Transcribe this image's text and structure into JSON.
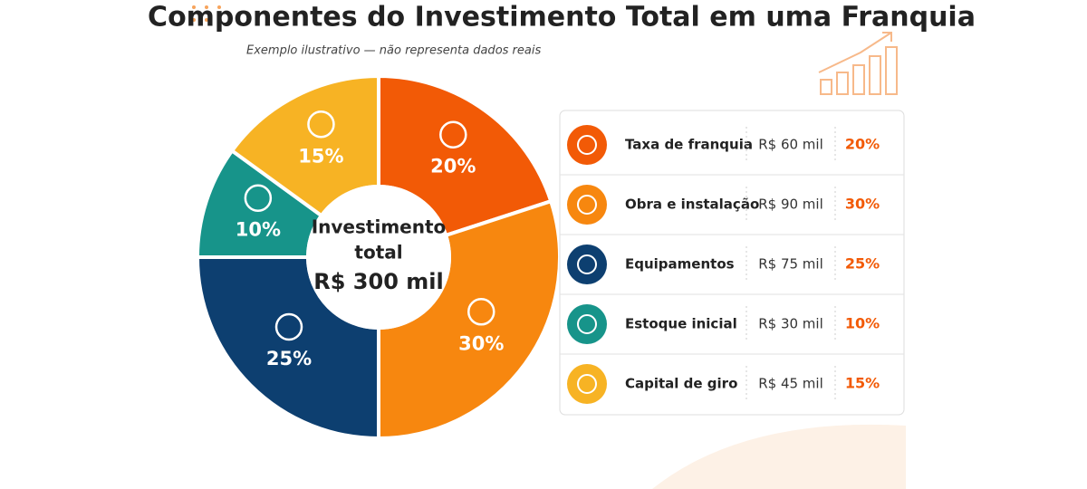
{
  "chart_data": {
    "type": "donut",
    "title": "Componentes do Investimento Total em uma Franquia",
    "subtitle": "Exemplo ilustrativo — não representa dados reais",
    "center_label": [
      "Investimento",
      "total",
      "R$ 300 mil"
    ],
    "categories": [
      "Taxa de franquia",
      "Obra e instalação",
      "Equipamentos",
      "Estoque inicial",
      "Capital de giro"
    ],
    "values": [
      20,
      30,
      25,
      10,
      15
    ],
    "value_labels": [
      "20%",
      "30%",
      "25%",
      "10%",
      "15%"
    ],
    "amounts": [
      "R$ 60 mil",
      "R$ 90 mil",
      "R$ 75 mil",
      "R$ 30 mil",
      "R$ 45 mil"
    ],
    "colors": [
      "#f25a06",
      "#f7870f",
      "#0d3f70",
      "#17948a",
      "#f7b324"
    ]
  }
}
